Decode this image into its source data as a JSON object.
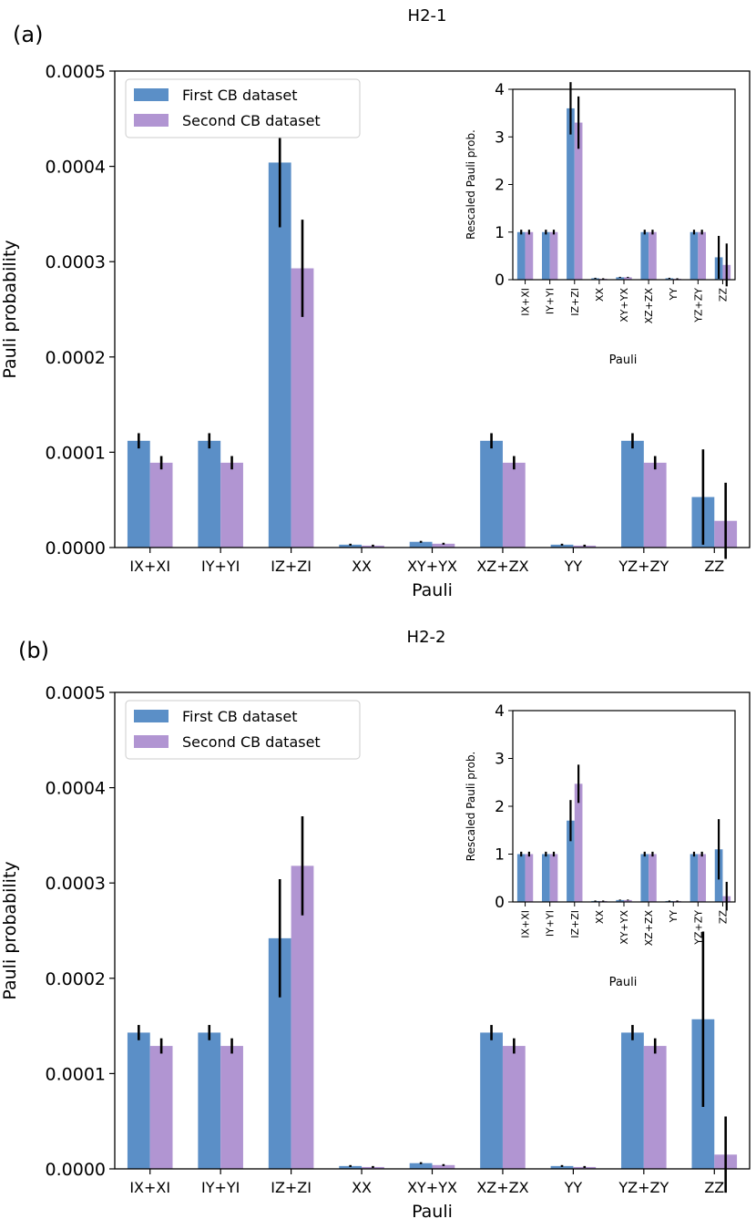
{
  "colors": {
    "first": "#5b8fc7",
    "second": "#b195d2",
    "error": "#000000"
  },
  "chart_data": [
    {
      "type": "bar",
      "panel_label": "(a)",
      "title": "H2-1",
      "xlabel": "Pauli",
      "ylabel": "Pauli probability",
      "ylim": [
        0,
        0.0005
      ],
      "yticks": [
        "0.0000",
        "0.0001",
        "0.0002",
        "0.0003",
        "0.0004",
        "0.0005"
      ],
      "categories": [
        "IX+XI",
        "IY+YI",
        "IZ+ZI",
        "XX",
        "XY+YX",
        "XZ+ZX",
        "YY",
        "YZ+ZY",
        "ZZ"
      ],
      "legend": [
        "First CB dataset",
        "Second CB dataset"
      ],
      "series": [
        {
          "name": "First CB dataset",
          "values": [
            0.000112,
            0.000112,
            0.000404,
            3e-06,
            6e-06,
            0.000112,
            3e-06,
            0.000112,
            5.3e-05
          ],
          "errors": [
            8e-06,
            8e-06,
            6.8e-05,
            1e-06,
            1e-06,
            8e-06,
            1e-06,
            8e-06,
            5e-05
          ]
        },
        {
          "name": "Second CB dataset",
          "values": [
            8.9e-05,
            8.9e-05,
            0.000293,
            2e-06,
            4e-06,
            8.9e-05,
            2e-06,
            8.9e-05,
            2.8e-05
          ],
          "errors": [
            7e-06,
            7e-06,
            5.1e-05,
            1e-06,
            1e-06,
            7e-06,
            1e-06,
            7e-06,
            4e-05
          ]
        }
      ],
      "inset": {
        "xlabel": "Pauli",
        "ylabel": "Rescaled Pauli prob.",
        "ylim": [
          0,
          4
        ],
        "yticks": [
          "0",
          "1",
          "2",
          "3",
          "4"
        ],
        "series": [
          {
            "name": "First CB dataset",
            "values": [
              1.0,
              1.0,
              3.6,
              0.03,
              0.05,
              1.0,
              0.03,
              1.0,
              0.47
            ],
            "errors": [
              0.05,
              0.05,
              0.55,
              0.01,
              0.01,
              0.05,
              0.01,
              0.05,
              0.45
            ]
          },
          {
            "name": "Second CB dataset",
            "values": [
              1.0,
              1.0,
              3.3,
              0.02,
              0.05,
              1.0,
              0.02,
              1.0,
              0.31
            ],
            "errors": [
              0.05,
              0.05,
              0.55,
              0.01,
              0.01,
              0.05,
              0.01,
              0.05,
              0.45
            ]
          }
        ]
      }
    },
    {
      "type": "bar",
      "panel_label": "(b)",
      "title": "H2-2",
      "xlabel": "Pauli",
      "ylabel": "Pauli probability",
      "ylim": [
        0,
        0.0005
      ],
      "yticks": [
        "0.0000",
        "0.0001",
        "0.0002",
        "0.0003",
        "0.0004",
        "0.0005"
      ],
      "categories": [
        "IX+XI",
        "IY+YI",
        "IZ+ZI",
        "XX",
        "XY+YX",
        "XZ+ZX",
        "YY",
        "YZ+ZY",
        "ZZ"
      ],
      "legend": [
        "First CB dataset",
        "Second CB dataset"
      ],
      "series": [
        {
          "name": "First CB dataset",
          "values": [
            0.000143,
            0.000143,
            0.000242,
            3e-06,
            6e-06,
            0.000143,
            3e-06,
            0.000143,
            0.000157
          ],
          "errors": [
            8e-06,
            8e-06,
            6.2e-05,
            1e-06,
            1e-06,
            8e-06,
            1e-06,
            8e-06,
            9.2e-05
          ]
        },
        {
          "name": "Second CB dataset",
          "values": [
            0.000129,
            0.000129,
            0.000318,
            2e-06,
            4e-06,
            0.000129,
            2e-06,
            0.000129,
            1.5e-05
          ],
          "errors": [
            8e-06,
            8e-06,
            5.2e-05,
            1e-06,
            1e-06,
            8e-06,
            1e-06,
            8e-06,
            4e-05
          ]
        }
      ],
      "inset": {
        "xlabel": "Pauli",
        "ylabel": "Rescaled Pauli prob.",
        "ylim": [
          0,
          4
        ],
        "yticks": [
          "0",
          "1",
          "2",
          "3",
          "4"
        ],
        "series": [
          {
            "name": "First CB dataset",
            "values": [
              1.0,
              1.0,
              1.7,
              0.02,
              0.04,
              1.0,
              0.02,
              1.0,
              1.1
            ],
            "errors": [
              0.05,
              0.05,
              0.43,
              0.01,
              0.01,
              0.05,
              0.01,
              0.05,
              0.63
            ]
          },
          {
            "name": "Second CB dataset",
            "values": [
              1.0,
              1.0,
              2.47,
              0.02,
              0.04,
              1.0,
              0.02,
              1.0,
              0.12
            ],
            "errors": [
              0.05,
              0.05,
              0.4,
              0.01,
              0.01,
              0.05,
              0.01,
              0.05,
              0.3
            ]
          }
        ]
      }
    }
  ]
}
